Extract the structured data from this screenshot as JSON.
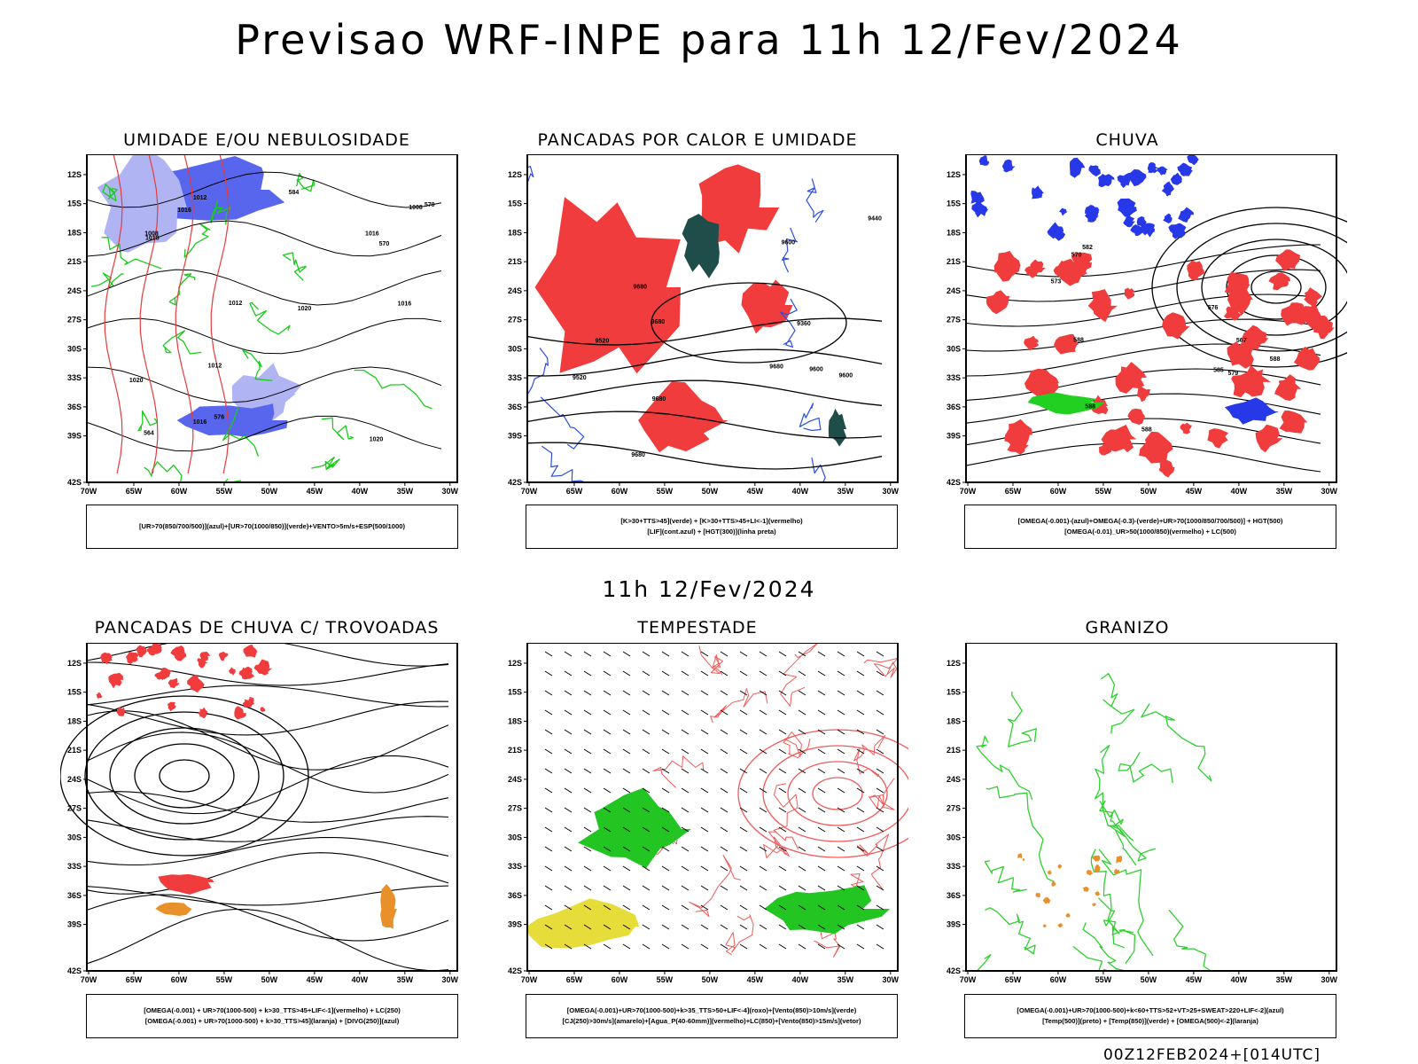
{
  "title": "Previsao WRF-INPE  para 11h 12/Fev/2024",
  "mid_time": "11h 12/Fev/2024",
  "footer": "00Z12FEB2024+[014UTC]",
  "lat_ticks": [
    "12S",
    "15S",
    "18S",
    "21S",
    "24S",
    "27S",
    "30S",
    "33S",
    "36S",
    "39S",
    "42S"
  ],
  "lon_ticks": [
    "70W",
    "65W",
    "60W",
    "55W",
    "50W",
    "45W",
    "40W",
    "35W",
    "30W"
  ],
  "panels": [
    {
      "title": "UMIDADE E/OU NEBULOSIDADE",
      "legend": [
        "[UR>70(850/700/500)](azul)+[UR>70(1000/850)](verde)+VENTO>5m/s+ESP(500/1000)"
      ],
      "labels": [
        "1016",
        "1016",
        "1012",
        "1020",
        "1020",
        "1018",
        "1020",
        "1016",
        "1012",
        "1008",
        "1016",
        "1012",
        "1008",
        "570",
        "576",
        "584",
        "564",
        "570"
      ],
      "colors": {
        "shade": "#5866ee",
        "shade2": "#b0b4f2",
        "contour": "#19cc19",
        "lines": "#e53b3b"
      }
    },
    {
      "title": "PANCADAS POR CALOR E UMIDADE",
      "legend": [
        "[K>30+TTS>45](verde) + [K>30+TTS>45+LI<-1](vermelho)",
        "[LIF](cont.azul) + [HGT(300)](linha preta)"
      ],
      "labels": [
        "9680",
        "9680",
        "9680",
        "9680",
        "9600",
        "9600",
        "9520",
        "9440",
        "9360",
        "9520",
        "9680",
        "9600"
      ],
      "colors": {
        "shade": "#f03c3c",
        "shade2": "#1e4d4a",
        "contour": "#2b4fe0"
      }
    },
    {
      "title": "CHUVA",
      "legend": [
        "[OMEGA(-0.001)-(azul)+OMEGA(-0.3)-(verde)+UR>70(1000/850/700/500)] + HGT(500)",
        "[OMEGA(-0.01)_UR>50(1000/850)(vermelho) + LC(500)"
      ],
      "labels": [
        "588",
        "588",
        "588",
        "588",
        "585",
        "582",
        "579",
        "576",
        "573",
        "570",
        "567"
      ],
      "colors": {
        "shade": "#f03c3c",
        "shade2": "#2638e8",
        "shade3": "#22d022"
      }
    },
    {
      "title": "PANCADAS DE CHUVA C/ TROVOADAS",
      "legend": [
        "[OMEGA(-0.001) + UR>70(1000-500) + k>30_TTS>45+LIF<-1](vermelho) + LC(250)",
        "[OMEGA(-0.001) + UR>70(1000-500) + k>30_TTS>45](laranja) + [DIVG(250)](azul)"
      ],
      "labels": [],
      "colors": {
        "shade": "#f03c3c",
        "shade2": "#e8912a",
        "shade3": "#2638e8"
      }
    },
    {
      "title": "TEMPESTADE",
      "legend": [
        "[OMEGA(-0.001)+UR>70(1000-500)+k>35_TTS>50+LIF<-4](roxo)+[Vento(850)>10m/s](verde)",
        "[CJ(250)>30m/s](amarelo)+[Agua_P(40-60mm)](vermelho)+LC(850)+[Vento(850)>15m/s](vetor)"
      ],
      "labels": [],
      "colors": {
        "shade": "#22c522",
        "shade2": "#e6dc3a",
        "contour": "#f05a5a"
      }
    },
    {
      "title": "GRANIZO",
      "legend": [
        "[OMEGA(-0.001)+UR>70(1000-500)+k<60+TTS>52+VT>25+SWEAT>220+LIF<-2](azul)",
        "[Temp(500)](preto) + [Temp(850)](verde) + [OMEGA(500)<-2](laranja)"
      ],
      "labels": [],
      "colors": {
        "contour": "#2ed12e",
        "shade": "#e8912a",
        "shade2": "#2638e8"
      }
    }
  ]
}
